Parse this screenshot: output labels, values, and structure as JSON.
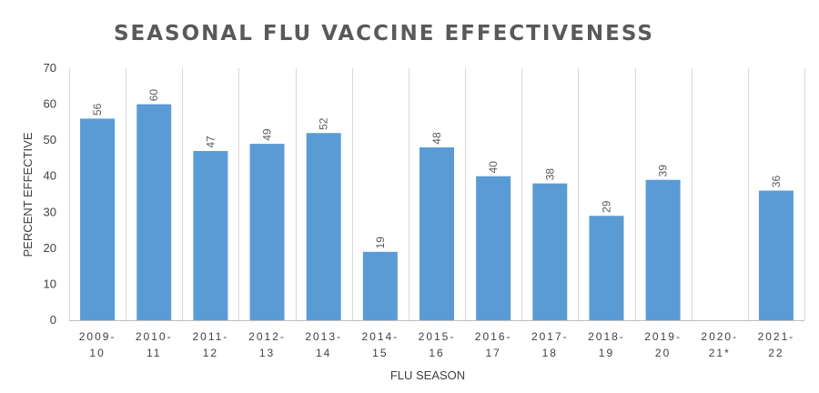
{
  "chart_data": {
    "type": "bar",
    "title": "SEASONAL FLU VACCINE EFFECTIVENESS",
    "xlabel": "FLU SEASON",
    "ylabel": "PERCENT EFFECTIVE",
    "ylim": [
      0,
      70
    ],
    "yticks": [
      0,
      10,
      20,
      30,
      40,
      50,
      60,
      70
    ],
    "grid": "vertical category separators",
    "bar_color": "#5b9bd5",
    "categories": [
      [
        "2009-",
        "10"
      ],
      [
        "2010-",
        "11"
      ],
      [
        "2011-",
        "12"
      ],
      [
        "2012-",
        "13"
      ],
      [
        "2013-",
        "14"
      ],
      [
        "2014-",
        "15"
      ],
      [
        "2015-",
        "16"
      ],
      [
        "2016-",
        "17"
      ],
      [
        "2017-",
        "18"
      ],
      [
        "2018-",
        "19"
      ],
      [
        "2019-",
        "20"
      ],
      [
        "2020-",
        "21*"
      ],
      [
        "2021-",
        "22"
      ]
    ],
    "values": [
      56,
      60,
      47,
      49,
      52,
      19,
      48,
      40,
      38,
      29,
      39,
      null,
      36
    ]
  }
}
